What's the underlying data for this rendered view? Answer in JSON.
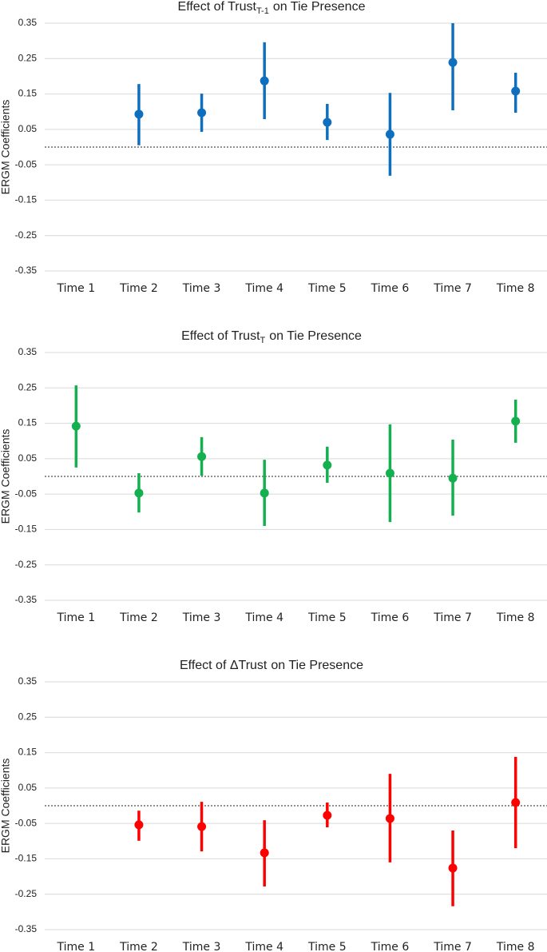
{
  "chart_data": [
    {
      "type": "errorbar",
      "title": {
        "text": "Effect of Trust",
        "subscript": "T-1",
        "suffix": "on Tie Presence"
      },
      "ylabel": "ERGM Coefficients",
      "categories": [
        "Time 1",
        "Time 2",
        "Time 3",
        "Time 4",
        "Time 5",
        "Time 6",
        "Time 7",
        "Time 8"
      ],
      "values": [
        null,
        0.093,
        0.097,
        0.187,
        0.07,
        0.036,
        0.239,
        0.158
      ],
      "lower": [
        null,
        0.005,
        0.043,
        0.079,
        0.02,
        -0.081,
        0.104,
        0.097
      ],
      "upper": [
        null,
        0.178,
        0.151,
        0.296,
        0.122,
        0.153,
        0.35,
        0.21
      ],
      "color": "#0f6fbf",
      "ylim": [
        -0.35,
        0.35
      ],
      "yticks": [
        -0.35,
        -0.25,
        -0.15,
        -0.05,
        0.05,
        0.15,
        0.25,
        0.35
      ],
      "reference_line": 0,
      "grid": true
    },
    {
      "type": "errorbar",
      "title": {
        "text": "Effect of Trust",
        "subscript": "T",
        "suffix": "on Tie Presence"
      },
      "ylabel": "ERGM Coefficients",
      "categories": [
        "Time 1",
        "Time 2",
        "Time 3",
        "Time 4",
        "Time 5",
        "Time 6",
        "Time 7",
        "Time 8"
      ],
      "values": [
        0.142,
        -0.047,
        0.056,
        -0.047,
        0.032,
        0.009,
        -0.005,
        0.156
      ],
      "lower": [
        0.025,
        -0.102,
        0.002,
        -0.14,
        -0.018,
        -0.129,
        -0.111,
        0.095
      ],
      "upper": [
        0.257,
        0.009,
        0.111,
        0.047,
        0.084,
        0.147,
        0.104,
        0.217
      ],
      "color": "#14b04f",
      "ylim": [
        -0.35,
        0.35
      ],
      "yticks": [
        -0.35,
        -0.25,
        -0.15,
        -0.05,
        0.05,
        0.15,
        0.25,
        0.35
      ],
      "reference_line": 0,
      "grid": true
    },
    {
      "type": "errorbar",
      "title": {
        "text": "Effect of ΔTrust",
        "suffix": "on Tie Presence"
      },
      "ylabel": "ERGM Coefficients",
      "categories": [
        "Time 1",
        "Time 2",
        "Time 3",
        "Time 4",
        "Time 5",
        "Time 6",
        "Time 7",
        "Time 8"
      ],
      "values": [
        null,
        -0.054,
        -0.059,
        -0.133,
        -0.027,
        -0.036,
        -0.176,
        0.009
      ],
      "lower": [
        null,
        -0.099,
        -0.129,
        -0.228,
        -0.061,
        -0.16,
        -0.284,
        -0.12
      ],
      "upper": [
        null,
        -0.014,
        0.011,
        -0.041,
        0.009,
        0.09,
        -0.07,
        0.138
      ],
      "color": "#ff0000",
      "ylim": [
        -0.35,
        0.35
      ],
      "yticks": [
        -0.35,
        -0.25,
        -0.15,
        -0.05,
        0.05,
        0.15,
        0.25,
        0.35
      ],
      "reference_line": 0,
      "grid": true
    }
  ]
}
